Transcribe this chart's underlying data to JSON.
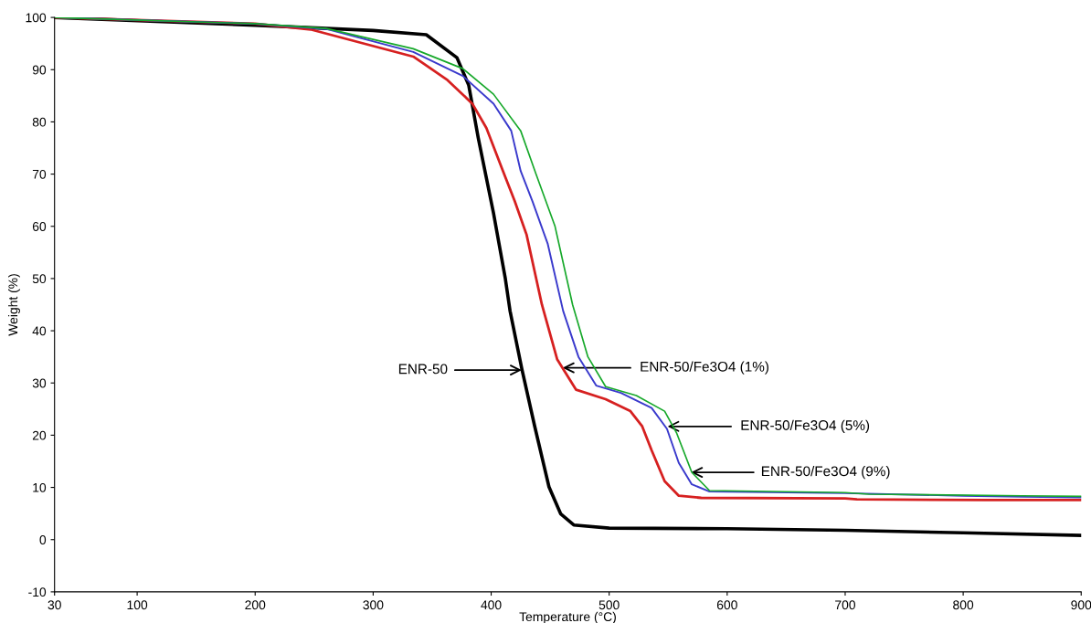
{
  "chart_data": {
    "type": "line",
    "xlabel": "Temperature (°C)",
    "ylabel": "Weight (%)",
    "xlim": [
      30,
      900
    ],
    "xticks": [
      30,
      100,
      200,
      300,
      400,
      500,
      600,
      700,
      800,
      900
    ],
    "ylim": [
      -10,
      100
    ],
    "yticks": [
      -10,
      0,
      10,
      20,
      30,
      40,
      50,
      60,
      70,
      80,
      90,
      100
    ],
    "grid": false,
    "marker": "none",
    "line_style": "solid",
    "series": [
      {
        "color": "#000000",
        "x": [
          30,
          200,
          300,
          345,
          371,
          381,
          389,
          402,
          412,
          416,
          426,
          437,
          449,
          459,
          470,
          500,
          600,
          700,
          800,
          900
        ],
        "values": [
          100,
          98.5,
          97.5,
          96.7,
          92.3,
          87,
          77,
          62.5,
          50,
          43.8,
          32.7,
          21.6,
          10.1,
          4.9,
          2.8,
          2.2,
          2.1,
          1.8,
          1.3,
          0.8
        ]
      },
      {
        "color": "#d62020",
        "x": [
          30,
          200,
          247,
          334,
          363,
          384,
          396,
          410,
          420,
          430,
          443,
          456,
          472,
          497,
          518,
          528,
          536,
          547,
          559,
          578,
          700,
          710,
          820,
          900
        ],
        "values": [
          100,
          98.8,
          97.7,
          92.5,
          88,
          83.5,
          78.8,
          70.6,
          64.8,
          58.4,
          45,
          34.5,
          28.7,
          26.9,
          24.6,
          21.7,
          17.1,
          11.2,
          8.4,
          8.0,
          7.9,
          7.7,
          7.6,
          7.6
        ]
      },
      {
        "color": "#3a3acc",
        "x": [
          30,
          200,
          260,
          334,
          376,
          402,
          417,
          425,
          435,
          448,
          461,
          474,
          489,
          510,
          536,
          549,
          559,
          570,
          585,
          700,
          800,
          850,
          900
        ],
        "values": [
          100,
          98.8,
          97.8,
          93.4,
          88.8,
          83.5,
          78.3,
          70.6,
          64.8,
          56.6,
          43.8,
          35,
          29.5,
          28.1,
          25.2,
          21.2,
          14.7,
          10.6,
          9.2,
          8.9,
          8.4,
          8.2,
          8.1
        ]
      },
      {
        "color": "#16a82a",
        "x": [
          30,
          200,
          260,
          334,
          376,
          402,
          425,
          438,
          454,
          469,
          482,
          497,
          523,
          547,
          557,
          570,
          585,
          700,
          720,
          850,
          900
        ],
        "values": [
          100,
          98.8,
          97.9,
          94,
          90.2,
          85.3,
          78.3,
          70,
          60.1,
          45,
          35,
          29.3,
          27.6,
          24.6,
          20.5,
          12.9,
          9.4,
          9.0,
          8.7,
          8.4,
          8.3
        ]
      }
    ],
    "annotations": [
      "ENR-50",
      "ENR-50/Fe3O4 (1%)",
      "ENR-50/Fe3O4 (5%)",
      "ENR-50/Fe3O4 (9%)"
    ]
  }
}
